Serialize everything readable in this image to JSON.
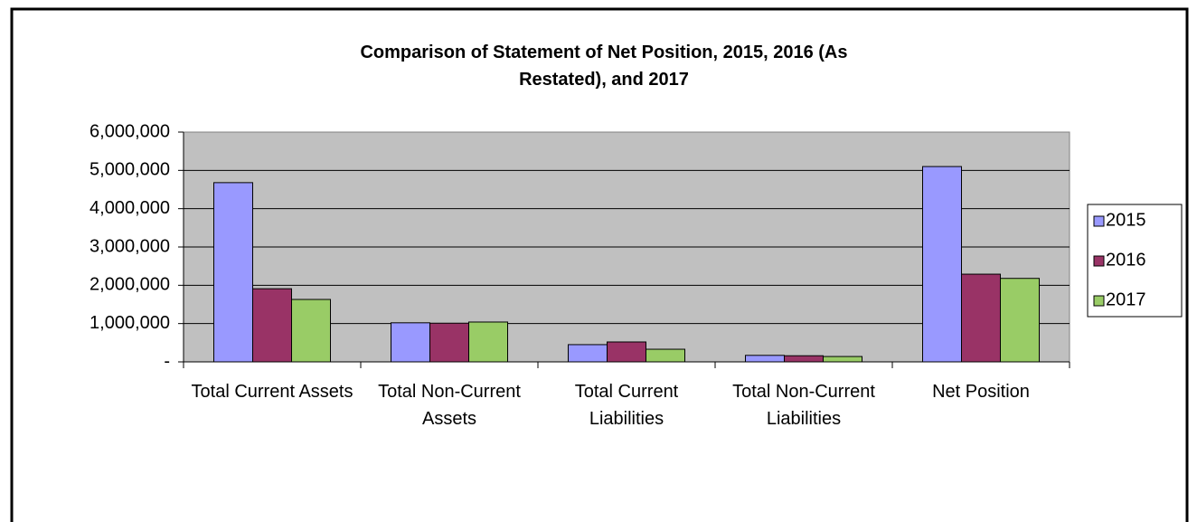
{
  "chart_data": {
    "type": "bar",
    "title": "Comparison of Statement of Net Position, 2015, 2016 (As Restated), and 2017",
    "categories": [
      "Total Current Assets",
      "Total Non-Current Assets",
      "Total Current Liabilities",
      "Total Non-Current Liabilities",
      "Net Position"
    ],
    "series": [
      {
        "name": "2015",
        "color": "#9999ff",
        "values": [
          4680000,
          1020000,
          450000,
          170000,
          5100000
        ]
      },
      {
        "name": "2016",
        "color": "#993366",
        "values": [
          1910000,
          1010000,
          520000,
          160000,
          2290000
        ]
      },
      {
        "name": "2017",
        "color": "#99cc66",
        "values": [
          1630000,
          1040000,
          330000,
          140000,
          2180000
        ]
      }
    ],
    "ylim": [
      0,
      6000000
    ],
    "yticks": [
      {
        "value": 0,
        "label": "-"
      },
      {
        "value": 1000000,
        "label": "1,000,000"
      },
      {
        "value": 2000000,
        "label": "2,000,000"
      },
      {
        "value": 3000000,
        "label": "3,000,000"
      },
      {
        "value": 4000000,
        "label": "4,000,000"
      },
      {
        "value": 5000000,
        "label": "5,000,000"
      },
      {
        "value": 6000000,
        "label": "6,000,000"
      }
    ],
    "grid": true,
    "legend": "right"
  }
}
